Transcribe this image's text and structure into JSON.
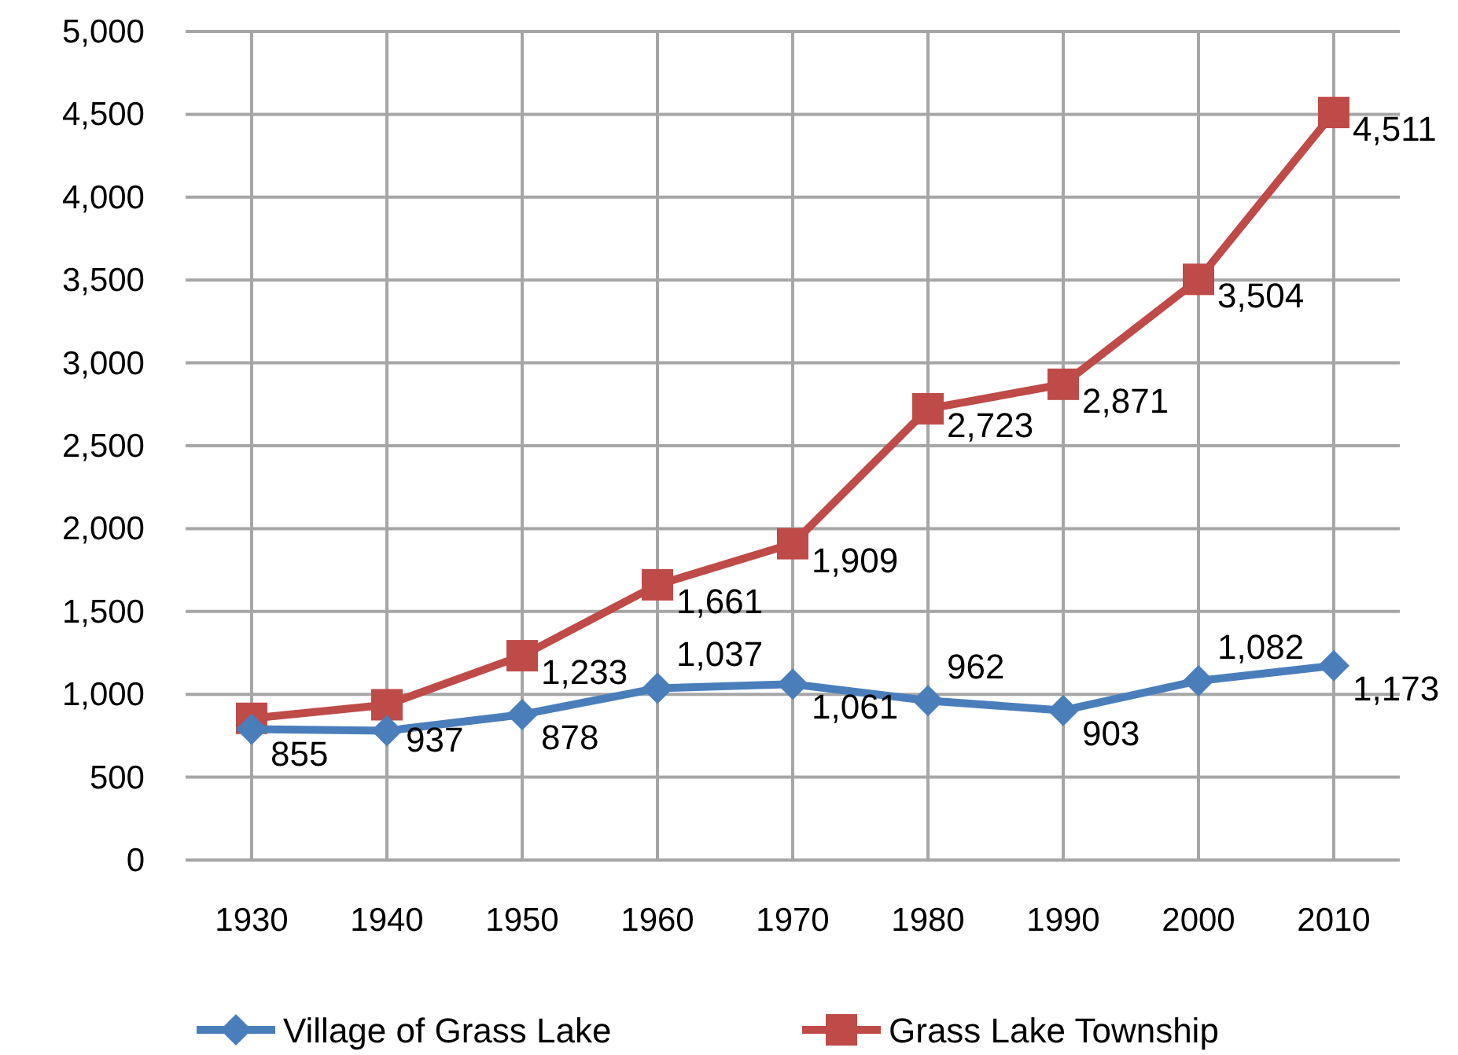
{
  "chart_data": {
    "type": "line",
    "categories": [
      "1930",
      "1940",
      "1950",
      "1960",
      "1970",
      "1980",
      "1990",
      "2000",
      "2010"
    ],
    "series": [
      {
        "name": "Village of Grass Lake",
        "color": "#4a7ebb",
        "marker": "diamond",
        "values": [
          790,
          780,
          878,
          1037,
          1061,
          962,
          903,
          1082,
          1173
        ],
        "value_labels": [
          null,
          null,
          "878",
          "1,037",
          "1,061",
          "962",
          "903",
          "1,082",
          "1,173"
        ]
      },
      {
        "name": "Grass Lake Township",
        "color": "#be4b48",
        "marker": "square",
        "values": [
          855,
          937,
          1233,
          1661,
          1909,
          2723,
          2871,
          3504,
          4511
        ],
        "value_labels": [
          "855",
          "937",
          "1,233",
          "1,661",
          "1,909",
          "2,723",
          "2,871",
          "3,504",
          "4,511"
        ]
      }
    ],
    "ylim": [
      0,
      5000
    ],
    "yticks": [
      {
        "value": 0,
        "label": "0"
      },
      {
        "value": 500,
        "label": "500"
      },
      {
        "value": 1000,
        "label": "1,000"
      },
      {
        "value": 1500,
        "label": "1,500"
      },
      {
        "value": 2000,
        "label": "2,000"
      },
      {
        "value": 2500,
        "label": "2,500"
      },
      {
        "value": 3000,
        "label": "3,000"
      },
      {
        "value": 3500,
        "label": "3,500"
      },
      {
        "value": 4000,
        "label": "4,000"
      },
      {
        "value": 4500,
        "label": "4,500"
      },
      {
        "value": 5000,
        "label": "5,000"
      }
    ],
    "grid": true,
    "legend": "bottom"
  }
}
